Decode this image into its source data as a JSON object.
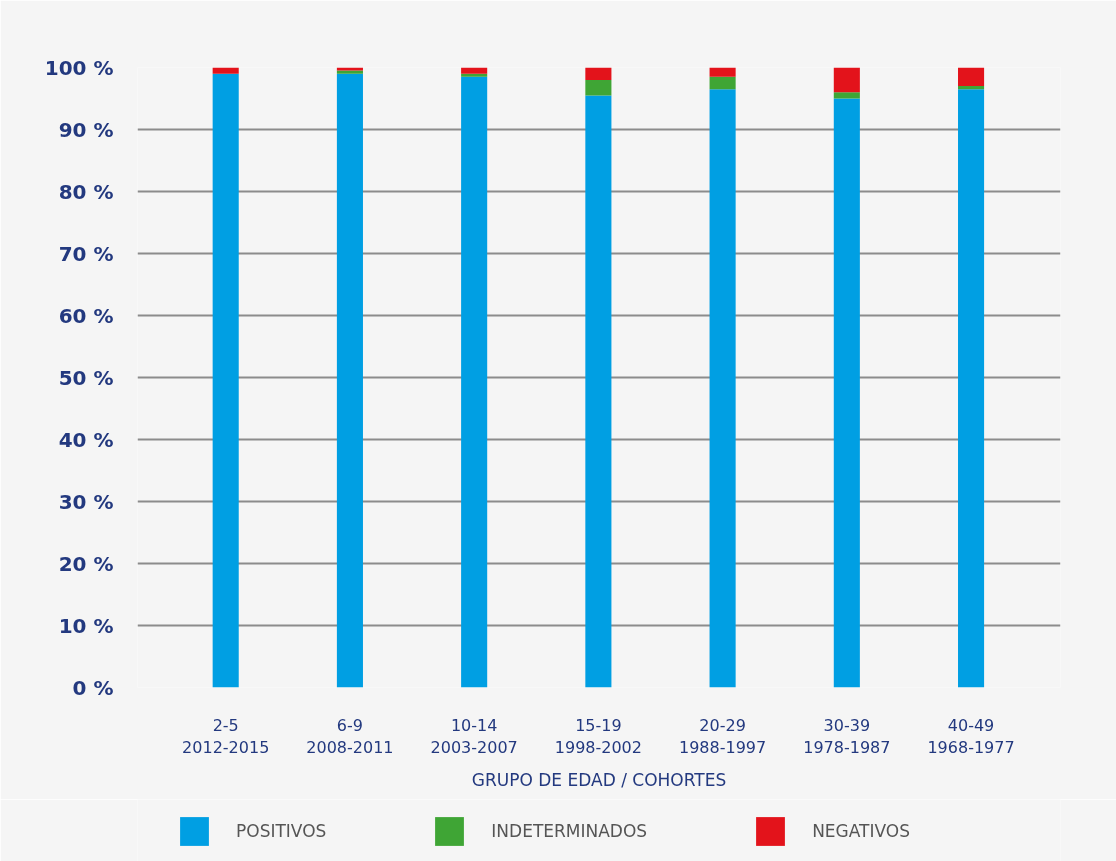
{
  "chart_data": {
    "type": "bar",
    "stacked": true,
    "categories": [
      "2-5\n2012-2015",
      "6-9\n2008-2011",
      "10-14\n2003-2007",
      "15-19\n1998-2002",
      "20-29\n1988-1997",
      "30-39\n1978-1987",
      "40-49\n1968-1977"
    ],
    "xlabel": "GRUPO DE EDAD / COHORTES",
    "ylim": [
      0,
      100
    ],
    "yticks": [
      {
        "value": 0,
        "label": "0 %"
      },
      {
        "value": 10,
        "label": "10 %"
      },
      {
        "value": 20,
        "label": "20 %"
      },
      {
        "value": 30,
        "label": "30 %"
      },
      {
        "value": 40,
        "label": "40 %"
      },
      {
        "value": 50,
        "label": "50 %"
      },
      {
        "value": 60,
        "label": "60 %"
      },
      {
        "value": 70,
        "label": "70 %"
      },
      {
        "value": 80,
        "label": "80 %"
      },
      {
        "value": 90,
        "label": "90 %"
      },
      {
        "value": 100,
        "label": "100 %"
      }
    ],
    "grid": "y",
    "legend": "bottom",
    "series": [
      {
        "name": "POSITIVOS",
        "color": "#009fe3",
        "values": [
          99,
          99,
          98.5,
          95.5,
          96.5,
          95,
          96.5
        ]
      },
      {
        "name": "INDETERMINADOS",
        "color": "#3fa535",
        "values": [
          0,
          0.5,
          0.5,
          2.5,
          2,
          1,
          0.5
        ]
      },
      {
        "name": "NEGATIVOS",
        "color": "#e3131b",
        "values": [
          1,
          0.5,
          1,
          2,
          1.5,
          4,
          3
        ]
      }
    ]
  }
}
